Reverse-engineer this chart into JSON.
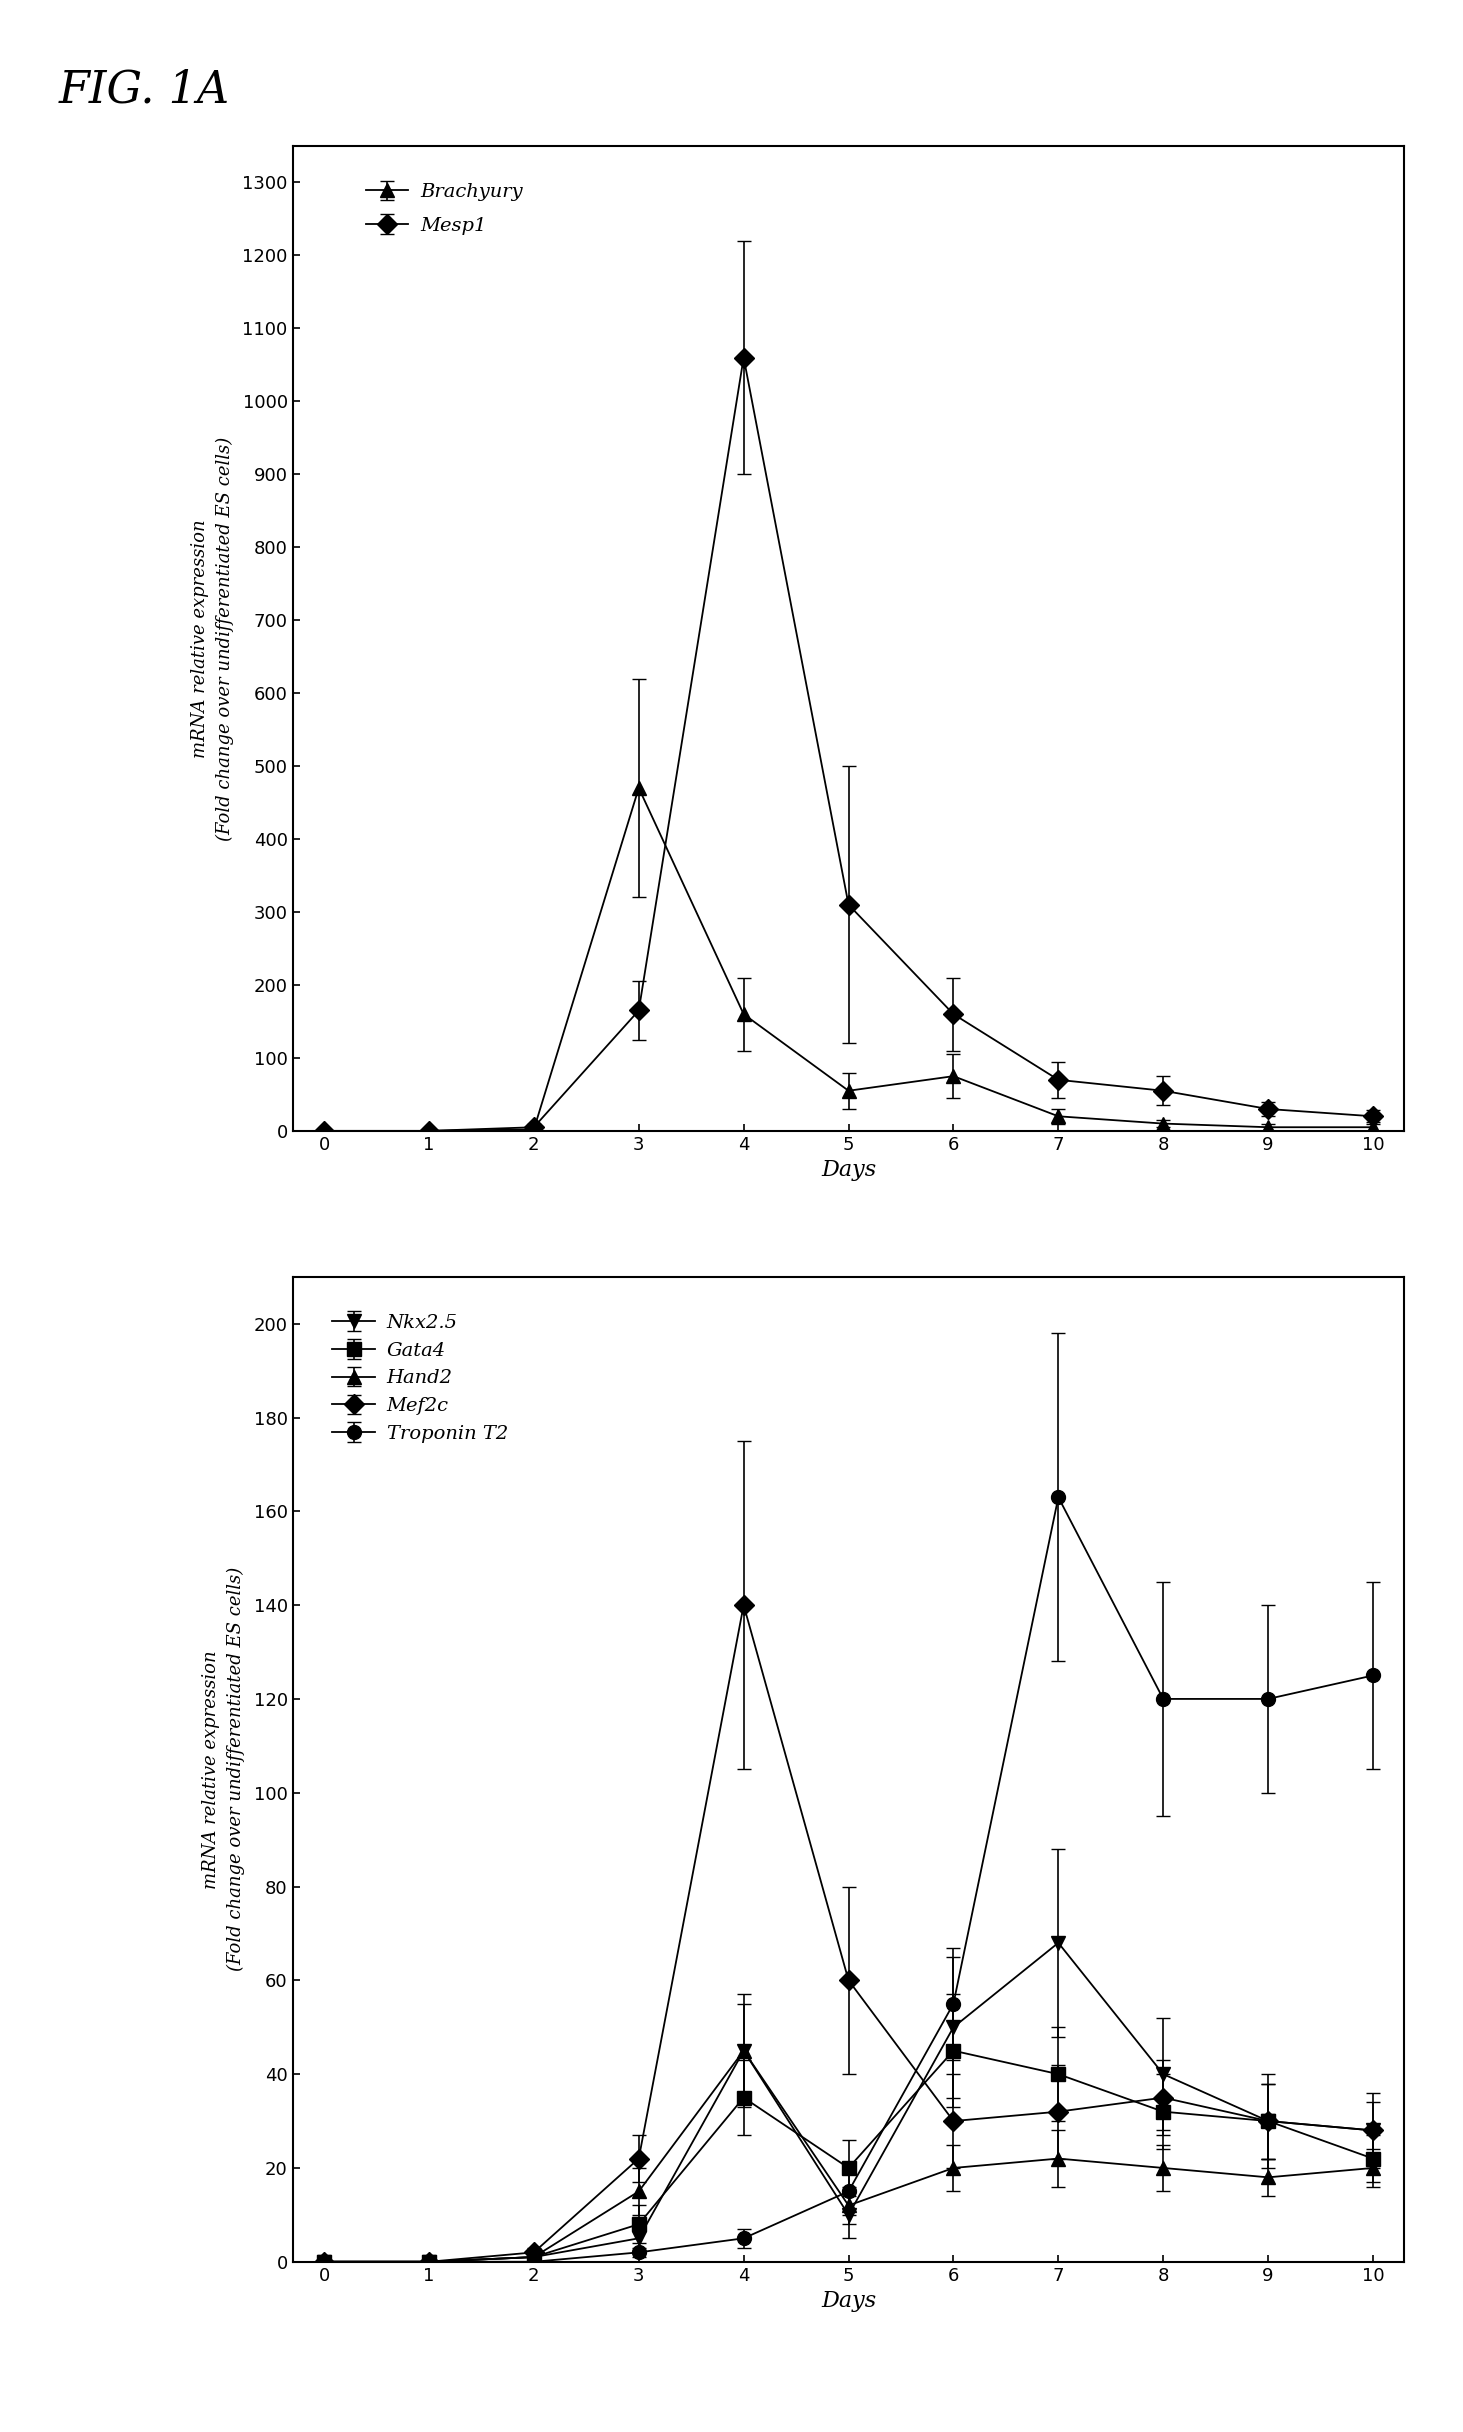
{
  "fig_label": "FIG. 1A",
  "plot1": {
    "xlabel": "Days",
    "ylabel": "mRNA relative expression\n(Fold change over undifferentiated ES cells)",
    "ylim": [
      0,
      1350
    ],
    "yticks": [
      0,
      100,
      200,
      300,
      400,
      500,
      600,
      700,
      800,
      900,
      1000,
      1100,
      1200,
      1300
    ],
    "xlim": [
      -0.3,
      10.3
    ],
    "xticks": [
      0,
      1,
      2,
      3,
      4,
      5,
      6,
      7,
      8,
      9,
      10
    ],
    "series": [
      {
        "label": "Brachyury",
        "marker": "^",
        "x": [
          0,
          1,
          2,
          3,
          4,
          5,
          6,
          7,
          8,
          9,
          10
        ],
        "y": [
          0,
          0,
          2,
          470,
          160,
          55,
          75,
          20,
          10,
          5,
          5
        ],
        "yerr": [
          0,
          0,
          5,
          150,
          50,
          25,
          30,
          10,
          5,
          5,
          5
        ]
      },
      {
        "label": "Mesp1",
        "marker": "D",
        "x": [
          0,
          1,
          2,
          3,
          4,
          5,
          6,
          7,
          8,
          9,
          10
        ],
        "y": [
          0,
          0,
          5,
          165,
          1060,
          310,
          160,
          70,
          55,
          30,
          20
        ],
        "yerr": [
          0,
          0,
          5,
          40,
          160,
          190,
          50,
          25,
          20,
          10,
          8
        ]
      }
    ]
  },
  "plot2": {
    "xlabel": "Days",
    "ylabel": "mRNA relative expression\n(Fold change over undifferentiated ES cells)",
    "ylim": [
      0,
      210
    ],
    "yticks": [
      0,
      20,
      40,
      60,
      80,
      100,
      120,
      140,
      160,
      180,
      200
    ],
    "xlim": [
      -0.3,
      10.3
    ],
    "xticks": [
      0,
      1,
      2,
      3,
      4,
      5,
      6,
      7,
      8,
      9,
      10
    ],
    "series": [
      {
        "label": "Nkx2.5",
        "marker": "v",
        "x": [
          0,
          1,
          2,
          3,
          4,
          5,
          6,
          7,
          8,
          9,
          10
        ],
        "y": [
          0,
          0,
          1,
          5,
          45,
          10,
          50,
          68,
          40,
          30,
          28
        ],
        "yerr": [
          0,
          0,
          1,
          3,
          10,
          5,
          15,
          20,
          12,
          10,
          8
        ]
      },
      {
        "label": "Gata4",
        "marker": "s",
        "x": [
          0,
          1,
          2,
          3,
          4,
          5,
          6,
          7,
          8,
          9,
          10
        ],
        "y": [
          0,
          0,
          1,
          8,
          35,
          20,
          45,
          40,
          32,
          30,
          22
        ],
        "yerr": [
          0,
          0,
          1,
          4,
          8,
          6,
          12,
          10,
          8,
          8,
          5
        ]
      },
      {
        "label": "Hand2",
        "marker": "^",
        "x": [
          0,
          1,
          2,
          3,
          4,
          5,
          6,
          7,
          8,
          9,
          10
        ],
        "y": [
          0,
          0,
          1,
          15,
          45,
          12,
          20,
          22,
          20,
          18,
          20
        ],
        "yerr": [
          0,
          0,
          1,
          5,
          12,
          4,
          5,
          6,
          5,
          4,
          4
        ]
      },
      {
        "label": "Mef2c",
        "marker": "D",
        "x": [
          0,
          1,
          2,
          3,
          4,
          5,
          6,
          7,
          8,
          9,
          10
        ],
        "y": [
          0,
          0,
          2,
          22,
          140,
          60,
          30,
          32,
          35,
          30,
          28
        ],
        "yerr": [
          0,
          0,
          1,
          5,
          35,
          20,
          10,
          10,
          8,
          8,
          6
        ]
      },
      {
        "label": "Troponin T2",
        "marker": "o",
        "x": [
          0,
          1,
          2,
          3,
          4,
          5,
          6,
          7,
          8,
          9,
          10
        ],
        "y": [
          0,
          0,
          0,
          2,
          5,
          15,
          55,
          163,
          120,
          120,
          125
        ],
        "yerr": [
          0,
          0,
          0,
          1,
          2,
          5,
          12,
          35,
          25,
          20,
          20
        ]
      }
    ]
  }
}
